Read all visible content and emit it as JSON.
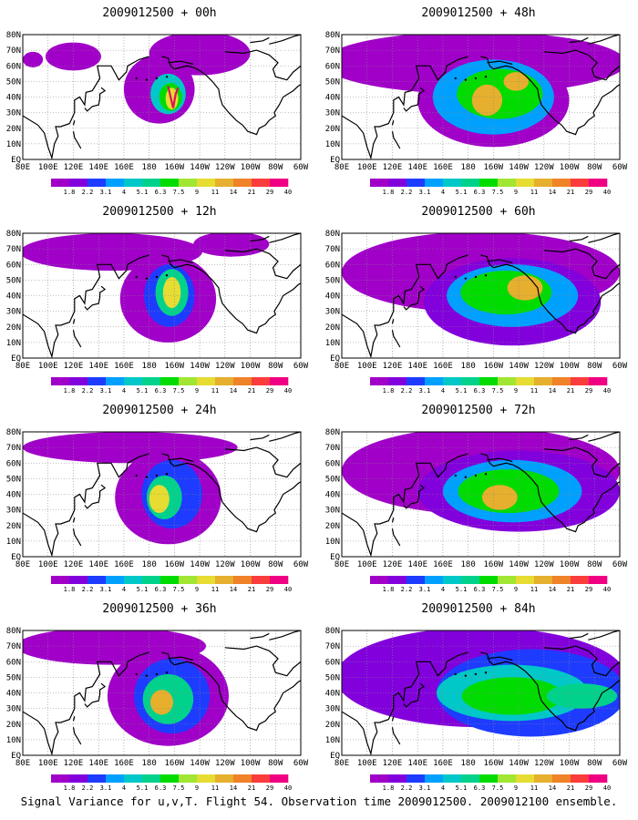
{
  "caption": "Signal Variance for u,v,T. Flight 54. Observation time 2009012500. 2009012100 ensemble.",
  "map": {
    "lat_labels": [
      "EQ",
      "10N",
      "20N",
      "30N",
      "40N",
      "50N",
      "60N",
      "70N",
      "80N"
    ],
    "lon_labels": [
      "80E",
      "100E",
      "120E",
      "140E",
      "160E",
      "180",
      "160W",
      "140W",
      "120W",
      "100W",
      "80W",
      "60W"
    ],
    "lat_range": [
      0,
      80
    ],
    "lon_range": [
      80,
      300
    ],
    "grid": "dotted"
  },
  "colorbar": {
    "labels": [
      "1.8",
      "2.2",
      "3.1",
      "4",
      "5.1",
      "6.3",
      "7.5",
      "9",
      "11",
      "14",
      "21",
      "29",
      "40"
    ],
    "colors": [
      "#a000c8",
      "#8200dc",
      "#1e3cff",
      "#00a0ff",
      "#00c8c8",
      "#00d28c",
      "#00dc00",
      "#a0e632",
      "#e6dc32",
      "#e6af2d",
      "#f08228",
      "#fa3c3c",
      "#f00082"
    ]
  },
  "chart_data": [
    {
      "type": "heatmap",
      "title": "2009012500 + 00h",
      "lead": "00h",
      "blobs": [
        {
          "lon": 188,
          "lat": 45,
          "r": [
            28,
            22
          ],
          "level": 0
        },
        {
          "lon": 220,
          "lat": 68,
          "r": [
            40,
            14
          ],
          "level": 0
        },
        {
          "lon": 120,
          "lat": 66,
          "r": [
            22,
            9
          ],
          "level": 0
        },
        {
          "lon": 88,
          "lat": 64,
          "r": [
            8,
            5
          ],
          "level": 0
        },
        {
          "lon": 195,
          "lat": 42,
          "r": [
            14,
            13
          ],
          "level": 4
        },
        {
          "lon": 197,
          "lat": 40,
          "r": [
            9,
            9
          ],
          "level": 6
        },
        {
          "lon": 198,
          "lat": 39,
          "r": [
            5,
            7
          ],
          "level": 8
        }
      ],
      "track": [
        [
          195,
          47
        ],
        [
          197,
          40
        ],
        [
          199,
          33
        ],
        [
          201,
          42
        ],
        [
          203,
          46
        ]
      ]
    },
    {
      "type": "heatmap",
      "title": "2009012500 + 12h",
      "lead": "12h",
      "blobs": [
        {
          "lon": 150,
          "lat": 68,
          "r": [
            72,
            12
          ],
          "level": 0
        },
        {
          "lon": 195,
          "lat": 38,
          "r": [
            38,
            28
          ],
          "level": 0
        },
        {
          "lon": 245,
          "lat": 73,
          "r": [
            30,
            8
          ],
          "level": 0
        },
        {
          "lon": 196,
          "lat": 40,
          "r": [
            20,
            20
          ],
          "level": 2
        },
        {
          "lon": 198,
          "lat": 42,
          "r": [
            13,
            15
          ],
          "level": 5
        },
        {
          "lon": 198,
          "lat": 42,
          "r": [
            7,
            10
          ],
          "level": 8
        }
      ]
    },
    {
      "type": "heatmap",
      "title": "2009012500 + 24h",
      "lead": "24h",
      "blobs": [
        {
          "lon": 165,
          "lat": 70,
          "r": [
            85,
            10
          ],
          "level": 0
        },
        {
          "lon": 195,
          "lat": 38,
          "r": [
            42,
            30
          ],
          "level": 0
        },
        {
          "lon": 198,
          "lat": 40,
          "r": [
            24,
            22
          ],
          "level": 2
        },
        {
          "lon": 192,
          "lat": 38,
          "r": [
            14,
            14
          ],
          "level": 5
        },
        {
          "lon": 188,
          "lat": 37,
          "r": [
            8,
            9
          ],
          "level": 8
        }
      ]
    },
    {
      "type": "heatmap",
      "title": "2009012500 + 36h",
      "lead": "36h",
      "blobs": [
        {
          "lon": 150,
          "lat": 70,
          "r": [
            75,
            12
          ],
          "level": 0
        },
        {
          "lon": 195,
          "lat": 38,
          "r": [
            48,
            32
          ],
          "level": 0
        },
        {
          "lon": 198,
          "lat": 38,
          "r": [
            30,
            24
          ],
          "level": 2
        },
        {
          "lon": 195,
          "lat": 36,
          "r": [
            20,
            16
          ],
          "level": 5
        },
        {
          "lon": 190,
          "lat": 34,
          "r": [
            9,
            8
          ],
          "level": 9
        }
      ]
    },
    {
      "type": "heatmap",
      "title": "2009012500 + 48h",
      "lead": "48h",
      "blobs": [
        {
          "lon": 185,
          "lat": 62,
          "r": [
            120,
            20
          ],
          "level": 0
        },
        {
          "lon": 200,
          "lat": 38,
          "r": [
            60,
            30
          ],
          "level": 0
        },
        {
          "lon": 200,
          "lat": 40,
          "r": [
            48,
            24
          ],
          "level": 3
        },
        {
          "lon": 205,
          "lat": 42,
          "r": [
            34,
            16
          ],
          "level": 6
        },
        {
          "lon": 195,
          "lat": 38,
          "r": [
            12,
            10
          ],
          "level": 9
        },
        {
          "lon": 218,
          "lat": 50,
          "r": [
            10,
            6
          ],
          "level": 9
        }
      ]
    },
    {
      "type": "heatmap",
      "title": "2009012500 + 60h",
      "lead": "60h",
      "blobs": [
        {
          "lon": 190,
          "lat": 55,
          "r": [
            110,
            26
          ],
          "level": 0
        },
        {
          "lon": 215,
          "lat": 36,
          "r": [
            70,
            28
          ],
          "level": 1
        },
        {
          "lon": 215,
          "lat": 40,
          "r": [
            52,
            20
          ],
          "level": 3
        },
        {
          "lon": 210,
          "lat": 42,
          "r": [
            36,
            14
          ],
          "level": 6
        },
        {
          "lon": 225,
          "lat": 45,
          "r": [
            14,
            8
          ],
          "level": 9
        }
      ]
    },
    {
      "type": "heatmap",
      "title": "2009012500 + 72h",
      "lead": "72h",
      "blobs": [
        {
          "lon": 190,
          "lat": 55,
          "r": [
            110,
            28
          ],
          "level": 0
        },
        {
          "lon": 220,
          "lat": 42,
          "r": [
            80,
            26
          ],
          "level": 1
        },
        {
          "lon": 215,
          "lat": 42,
          "r": [
            55,
            20
          ],
          "level": 3
        },
        {
          "lon": 212,
          "lat": 42,
          "r": [
            40,
            14
          ],
          "level": 6
        },
        {
          "lon": 205,
          "lat": 38,
          "r": [
            14,
            8
          ],
          "level": 9
        }
      ]
    },
    {
      "type": "heatmap",
      "title": "2009012500 + 84h",
      "lead": "84h",
      "blobs": [
        {
          "lon": 190,
          "lat": 50,
          "r": [
            115,
            32
          ],
          "level": 1
        },
        {
          "lon": 230,
          "lat": 40,
          "r": [
            75,
            28
          ],
          "level": 2
        },
        {
          "lon": 215,
          "lat": 40,
          "r": [
            60,
            18
          ],
          "level": 4
        },
        {
          "lon": 215,
          "lat": 38,
          "r": [
            40,
            12
          ],
          "level": 6
        },
        {
          "lon": 270,
          "lat": 38,
          "r": [
            28,
            8
          ],
          "level": 5
        }
      ]
    }
  ]
}
